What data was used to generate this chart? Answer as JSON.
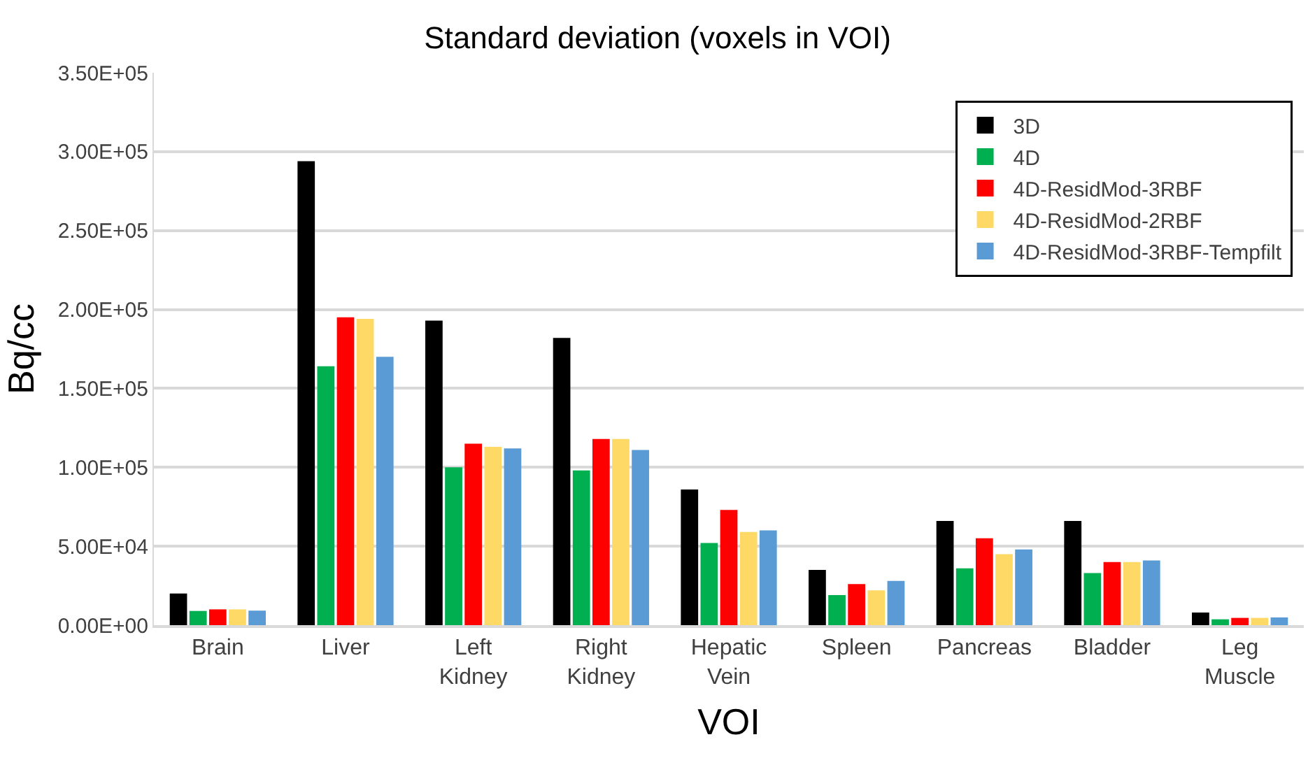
{
  "chart_data": {
    "type": "bar",
    "title": "Standard deviation (voxels in VOI)",
    "xlabel": "VOI",
    "ylabel": "Bq/cc",
    "categories": [
      "Brain",
      "Liver",
      "Left Kidney",
      "Right Kidney",
      "Hepatic Vein",
      "Spleen",
      "Pancreas",
      "Bladder",
      "Leg Muscle"
    ],
    "series": [
      {
        "name": "3D",
        "color": "#000000",
        "values": [
          20000,
          294000,
          193000,
          182000,
          86000,
          35000,
          66000,
          66000,
          8000
        ]
      },
      {
        "name": "4D",
        "color": "#00b050",
        "values": [
          9000,
          164000,
          100000,
          98000,
          52000,
          19000,
          36000,
          33000,
          3700
        ]
      },
      {
        "name": "4D-ResidMod-3RBF",
        "color": "#ff0000",
        "values": [
          10000,
          195000,
          115000,
          118000,
          73000,
          26000,
          55000,
          40000,
          4600
        ]
      },
      {
        "name": "4D-ResidMod-2RBF",
        "color": "#ffd966",
        "values": [
          10000,
          194000,
          113000,
          118000,
          59000,
          22000,
          45000,
          40000,
          4600
        ]
      },
      {
        "name": "4D-ResidMod-3RBF-Tempfilt",
        "color": "#5b9bd5",
        "values": [
          9200,
          170000,
          112000,
          111000,
          60000,
          28000,
          48000,
          41000,
          4900
        ]
      }
    ],
    "ylim": [
      0,
      350000
    ],
    "yticks": [
      {
        "value": 0,
        "label": "0.00E+00"
      },
      {
        "value": 50000,
        "label": "5.00E+04"
      },
      {
        "value": 100000,
        "label": "1.00E+05"
      },
      {
        "value": 150000,
        "label": "1.50E+05"
      },
      {
        "value": 200000,
        "label": "2.00E+05"
      },
      {
        "value": 250000,
        "label": "2.50E+05"
      },
      {
        "value": 300000,
        "label": "3.00E+05"
      },
      {
        "value": 350000,
        "label": "3.50E+05"
      }
    ],
    "grid": "y",
    "legend": "top right"
  }
}
